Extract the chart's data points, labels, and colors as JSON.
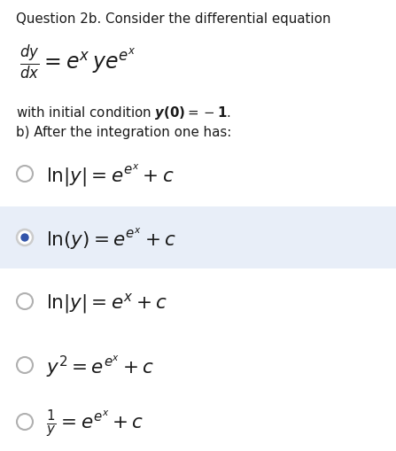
{
  "title": "Question 2b. Consider the differential equation",
  "equation_main": "$\\frac{dy}{dx} = e^x ye^{e^x}$",
  "initial_condition_prefix": "with initial condition ",
  "initial_condition_math": "$\\boldsymbol{y}\\mathbf{(0)} = -\\mathbf{1}.$",
  "after_text": "b) After the integration one has:",
  "options": [
    {
      "label": "$\\mathrm{ln}|y| = e^{e^x} + c$",
      "selected": false,
      "highlighted": false
    },
    {
      "label": "$\\mathrm{ln}(y) = e^{e^x} + c$",
      "selected": true,
      "highlighted": true
    },
    {
      "label": "$\\mathrm{ln}|y| = e^x + c$",
      "selected": false,
      "highlighted": false
    },
    {
      "label": "$y^2 = e^{e^x} + c$",
      "selected": false,
      "highlighted": false
    },
    {
      "label": "$\\frac{1}{y} = e^{e^x} + c$",
      "selected": false,
      "highlighted": false
    }
  ],
  "background_color": "#ffffff",
  "highlight_color": "#e8eef8",
  "text_color": "#1a1a1a",
  "radio_unselected_color": "#b0b0b0",
  "radio_selected_outer_color": "#cccccc",
  "radio_selected_dot_color": "#3355aa"
}
